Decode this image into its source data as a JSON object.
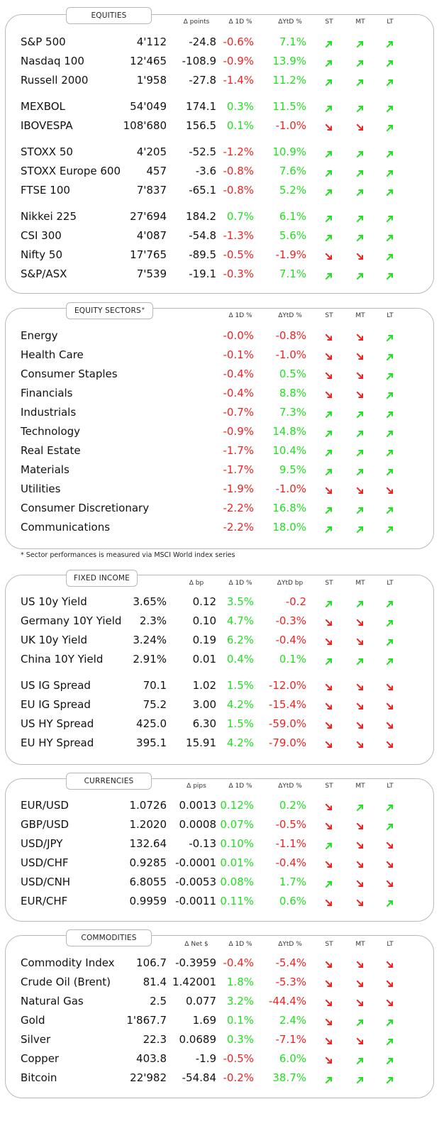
{
  "colors": {
    "positive": "#22e022",
    "negative": "#f22222",
    "border": "#b9b9b9"
  },
  "panels": [
    {
      "key": "equities",
      "title": "EQUITIES",
      "headers": {
        "abs": "Δ points",
        "d1": "Δ 1D %",
        "ytd": "ΔYtD %",
        "st": "ST",
        "mt": "MT",
        "lt": "LT"
      },
      "rows": [
        {
          "name": "S&P 500",
          "level": "4'112",
          "abs": "-24.8",
          "d1": "-0.6%",
          "ytd": "7.1%",
          "st": "up",
          "mt": "up",
          "lt": "up"
        },
        {
          "name": "Nasdaq 100",
          "level": "12'465",
          "abs": "-108.9",
          "d1": "-0.9%",
          "ytd": "13.9%",
          "st": "up",
          "mt": "up",
          "lt": "up"
        },
        {
          "name": "Russell 2000",
          "level": "1'958",
          "abs": "-27.8",
          "d1": "-1.4%",
          "ytd": "11.2%",
          "st": "up",
          "mt": "up",
          "lt": "up"
        },
        {
          "name": "MEXBOL",
          "level": "54'049",
          "abs": "174.1",
          "d1": "0.3%",
          "ytd": "11.5%",
          "st": "up",
          "mt": "up",
          "lt": "up"
        },
        {
          "name": "IBOVESPA",
          "level": "108'680",
          "abs": "156.5",
          "d1": "0.1%",
          "ytd": "-1.0%",
          "st": "down",
          "mt": "down",
          "lt": "up"
        },
        {
          "name": "STOXX 50",
          "level": "4'205",
          "abs": "-52.5",
          "d1": "-1.2%",
          "ytd": "10.9%",
          "st": "up",
          "mt": "up",
          "lt": "up"
        },
        {
          "name": "STOXX Europe 600",
          "level": "457",
          "abs": "-3.6",
          "d1": "-0.8%",
          "ytd": "7.6%",
          "st": "up",
          "mt": "up",
          "lt": "up"
        },
        {
          "name": "FTSE 100",
          "level": "7'837",
          "abs": "-65.1",
          "d1": "-0.8%",
          "ytd": "5.2%",
          "st": "up",
          "mt": "up",
          "lt": "up"
        },
        {
          "name": "Nikkei 225",
          "level": "27'694",
          "abs": "184.2",
          "d1": "0.7%",
          "ytd": "6.1%",
          "st": "up",
          "mt": "up",
          "lt": "up"
        },
        {
          "name": "CSI 300",
          "level": "4'087",
          "abs": "-54.8",
          "d1": "-1.3%",
          "ytd": "5.6%",
          "st": "up",
          "mt": "up",
          "lt": "up"
        },
        {
          "name": "Nifty  50",
          "level": "17'765",
          "abs": "-89.5",
          "d1": "-0.5%",
          "ytd": "-1.9%",
          "st": "down",
          "mt": "down",
          "lt": "up"
        },
        {
          "name": "S&P/ASX",
          "level": "7'539",
          "abs": "-19.1",
          "d1": "-0.3%",
          "ytd": "7.1%",
          "st": "up",
          "mt": "up",
          "lt": "up"
        }
      ]
    },
    {
      "key": "sectors",
      "title": "EQUITY  SECTORS",
      "title_mark": "*",
      "headers": {
        "d1": "Δ 1D %",
        "ytd": "ΔYtD %",
        "st": "ST",
        "mt": "MT",
        "lt": "LT"
      },
      "rows": [
        {
          "name": "Energy",
          "d1": "-0.0%",
          "ytd": "-0.8%",
          "st": "down",
          "mt": "down",
          "lt": "up"
        },
        {
          "name": "Health Care",
          "d1": "-0.1%",
          "ytd": "-1.0%",
          "st": "down",
          "mt": "down",
          "lt": "up"
        },
        {
          "name": "Consumer Staples",
          "d1": "-0.4%",
          "ytd": "0.5%",
          "st": "down",
          "mt": "down",
          "lt": "up"
        },
        {
          "name": "Financials",
          "d1": "-0.4%",
          "ytd": "8.8%",
          "st": "down",
          "mt": "down",
          "lt": "up"
        },
        {
          "name": "Industrials",
          "d1": "-0.7%",
          "ytd": "7.3%",
          "st": "up",
          "mt": "up",
          "lt": "up"
        },
        {
          "name": "Technology",
          "d1": "-0.9%",
          "ytd": "14.8%",
          "st": "up",
          "mt": "up",
          "lt": "up"
        },
        {
          "name": "Real Estate",
          "d1": "-1.7%",
          "ytd": "10.4%",
          "st": "up",
          "mt": "up",
          "lt": "up"
        },
        {
          "name": "Materials",
          "d1": "-1.7%",
          "ytd": "9.5%",
          "st": "up",
          "mt": "up",
          "lt": "up"
        },
        {
          "name": "Utilities",
          "d1": "-1.9%",
          "ytd": "-1.0%",
          "st": "down",
          "mt": "down",
          "lt": "down"
        },
        {
          "name": "Consumer Discretionary",
          "d1": "-2.2%",
          "ytd": "16.8%",
          "st": "up",
          "mt": "up",
          "lt": "up"
        },
        {
          "name": "Communications",
          "d1": "-2.2%",
          "ytd": "18.0%",
          "st": "up",
          "mt": "up",
          "lt": "up"
        }
      ]
    },
    {
      "key": "fixed_income",
      "title": "FIXED  INCOME",
      "headers": {
        "abs": "Δ bp",
        "d1": "Δ 1D %",
        "ytd": "ΔYtD bp",
        "st": "ST",
        "mt": "MT",
        "lt": "LT"
      },
      "rows": [
        {
          "name": "US 10y Yield",
          "level": "3.65%",
          "abs": "0.12",
          "d1": "3.5%",
          "ytd": "-0.2",
          "st": "up",
          "mt": "up",
          "lt": "up"
        },
        {
          "name": "Germany 10Y Yield",
          "level": "2.3%",
          "abs": "0.10",
          "d1": "4.7%",
          "ytd": "-0.3%",
          "st": "down",
          "mt": "down",
          "lt": "up"
        },
        {
          "name": "UK 10y Yield",
          "level": "3.24%",
          "abs": "0.19",
          "d1": "6.2%",
          "ytd": "-0.4%",
          "st": "down",
          "mt": "down",
          "lt": "up"
        },
        {
          "name": "China 10Y Yield",
          "level": "2.91%",
          "abs": "0.01",
          "d1": "0.4%",
          "ytd": "0.1%",
          "st": "up",
          "mt": "up",
          "lt": "up"
        },
        {
          "name": "US IG Spread",
          "level": "70.1",
          "abs": "1.02",
          "d1": "1.5%",
          "ytd": "-12.0%",
          "st": "down",
          "mt": "down",
          "lt": "down"
        },
        {
          "name": "EU IG Spread",
          "level": "75.2",
          "abs": "3.00",
          "d1": "4.2%",
          "ytd": "-15.4%",
          "st": "down",
          "mt": "down",
          "lt": "down"
        },
        {
          "name": "US HY Spread",
          "level": "425.0",
          "abs": "6.30",
          "d1": "1.5%",
          "ytd": "-59.0%",
          "st": "down",
          "mt": "down",
          "lt": "down"
        },
        {
          "name": "EU HY Spread",
          "level": "395.1",
          "abs": "15.91",
          "d1": "4.2%",
          "ytd": "-79.0%",
          "st": "down",
          "mt": "down",
          "lt": "down"
        }
      ]
    },
    {
      "key": "currencies",
      "title": "CURRENCIES",
      "headers": {
        "abs": "Δ pips",
        "d1": "Δ 1D %",
        "ytd": "ΔYtD %",
        "st": "ST",
        "mt": "MT",
        "lt": "LT"
      },
      "rows": [
        {
          "name": "EUR/USD",
          "level": "1.0726",
          "abs": "0.0013",
          "d1": "0.12%",
          "ytd": "0.2%",
          "st": "down",
          "mt": "up",
          "lt": "up"
        },
        {
          "name": "GBP/USD",
          "level": "1.2020",
          "abs": "0.0008",
          "d1": "0.07%",
          "ytd": "-0.5%",
          "st": "down",
          "mt": "down",
          "lt": "up"
        },
        {
          "name": "USD/JPY",
          "level": "132.64",
          "abs": "-0.13",
          "d1": "0.10%",
          "ytd": "-1.1%",
          "st": "up",
          "mt": "down",
          "lt": "down"
        },
        {
          "name": "USD/CHF",
          "level": "0.9285",
          "abs": "-0.0001",
          "d1": "0.01%",
          "ytd": "-0.4%",
          "st": "down",
          "mt": "down",
          "lt": "down"
        },
        {
          "name": "USD/CNH",
          "level": "6.8055",
          "abs": "-0.0053",
          "d1": "0.08%",
          "ytd": "1.7%",
          "st": "up",
          "mt": "down",
          "lt": "down"
        },
        {
          "name": "EUR/CHF",
          "level": "0.9959",
          "abs": "-0.0011",
          "d1": "0.11%",
          "ytd": "0.6%",
          "st": "down",
          "mt": "down",
          "lt": "up"
        }
      ]
    },
    {
      "key": "commodities",
      "title": "COMMODITIES",
      "headers": {
        "abs": "Δ Net $",
        "d1": "Δ 1D %",
        "ytd": "ΔYtD %",
        "st": "ST",
        "mt": "MT",
        "lt": "LT"
      },
      "rows": [
        {
          "name": "Commodity Index",
          "level": "106.7",
          "abs": "-0.3959",
          "d1": "-0.4%",
          "ytd": "-5.4%",
          "st": "down",
          "mt": "down",
          "lt": "down"
        },
        {
          "name": "Crude Oil (Brent)",
          "level": "81.4",
          "abs": "1.42001",
          "d1": "1.8%",
          "ytd": "-5.3%",
          "st": "down",
          "mt": "down",
          "lt": "down"
        },
        {
          "name": "Natural Gas",
          "level": "2.5",
          "abs": "0.077",
          "d1": "3.2%",
          "ytd": "-44.4%",
          "st": "down",
          "mt": "down",
          "lt": "down"
        },
        {
          "name": "Gold",
          "level": "1'867.7",
          "abs": "1.69",
          "d1": "0.1%",
          "ytd": "2.4%",
          "st": "down",
          "mt": "up",
          "lt": "up"
        },
        {
          "name": "Silver",
          "level": "22.3",
          "abs": "0.0689",
          "d1": "0.3%",
          "ytd": "-7.1%",
          "st": "down",
          "mt": "down",
          "lt": "up"
        },
        {
          "name": "Copper",
          "level": "403.8",
          "abs": "-1.9",
          "d1": "-0.5%",
          "ytd": "6.0%",
          "st": "down",
          "mt": "up",
          "lt": "up"
        },
        {
          "name": "Bitcoin",
          "level": "22'982",
          "abs": "-54.84",
          "d1": "-0.2%",
          "ytd": "38.7%",
          "st": "up",
          "mt": "up",
          "lt": "up"
        }
      ]
    }
  ],
  "footnote": "* Sector performances is measured via MSCI World index series"
}
